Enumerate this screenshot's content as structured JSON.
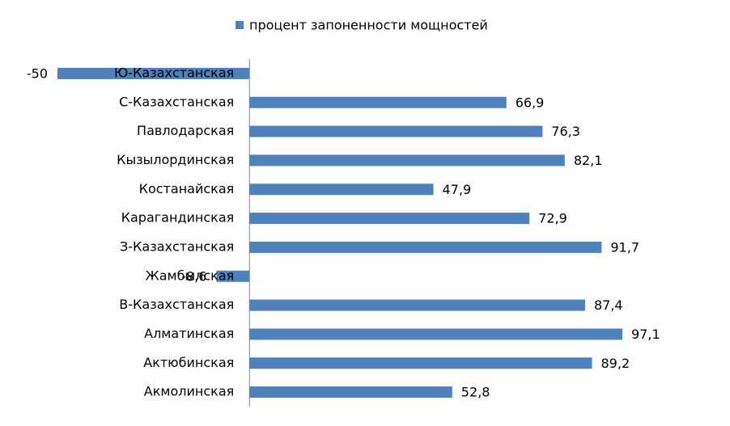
{
  "chart_data": {
    "type": "bar",
    "orientation": "horizontal",
    "categories": [
      "Ю-Казахстанская",
      "С-Казахстанская",
      "Павлодарская",
      "Кызылординская",
      "Костанайская",
      "Карагандинская",
      "З-Казахстанская",
      "Жамбылская",
      "В-Казахстанская",
      "Алматинская",
      "Актюбинская",
      "Акмолинская"
    ],
    "series": [
      {
        "name": "процент запоненности мощностей",
        "color": "#4f81bd",
        "values": [
          -50,
          66.9,
          76.3,
          82.1,
          47.9,
          72.9,
          91.7,
          -8.6,
          87.4,
          97.1,
          89.2,
          52.8
        ],
        "value_labels": [
          "-50",
          "66,9",
          "76,3",
          "82,1",
          "47,9",
          "72,9",
          "91,7",
          "-8,6",
          "87,4",
          "97,1",
          "89,2",
          "52,8"
        ]
      }
    ],
    "legend": "top"
  }
}
